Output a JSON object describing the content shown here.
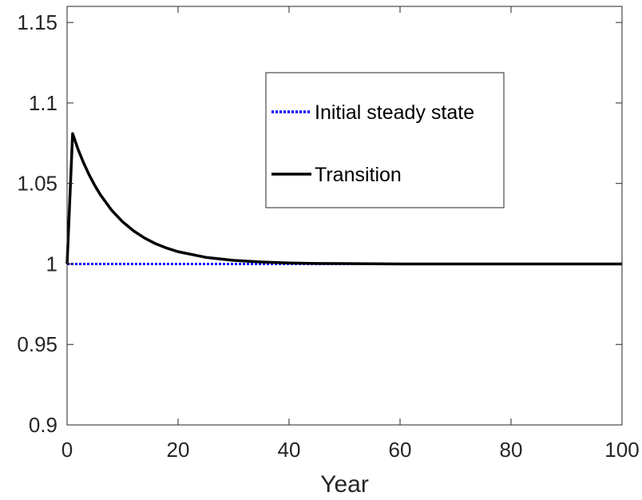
{
  "chart_data": {
    "type": "line",
    "title": "",
    "xlabel": "Year",
    "ylabel": "",
    "xlim": [
      0,
      100
    ],
    "ylim": [
      0.9,
      1.16
    ],
    "xticks": [
      0,
      20,
      40,
      60,
      80,
      100
    ],
    "xtick_labels": [
      "0",
      "20",
      "40",
      "60",
      "80",
      "100"
    ],
    "yticks": [
      0.9,
      0.95,
      1.0,
      1.05,
      1.1,
      1.15
    ],
    "ytick_labels": [
      "0.9",
      "0.95",
      "1",
      "1.05",
      "1.1",
      "1.15"
    ],
    "grid": false,
    "legend_position": "upper-right",
    "series": [
      {
        "name": "Initial steady state",
        "style": "dotted",
        "color": "#0000ff",
        "x": [
          0,
          100
        ],
        "y": [
          1.0,
          1.0
        ]
      },
      {
        "name": "Transition",
        "style": "solid",
        "color": "#000000",
        "x": [
          0,
          1,
          2,
          3,
          4,
          5,
          6,
          8,
          10,
          12,
          14,
          16,
          18,
          20,
          25,
          30,
          35,
          40,
          45,
          50,
          60,
          70,
          80,
          90,
          100
        ],
        "y": [
          1.0,
          1.081,
          1.071,
          1.0626,
          1.0552,
          1.0487,
          1.043,
          1.0335,
          1.0262,
          1.0205,
          1.016,
          1.0125,
          1.0098,
          1.0076,
          1.0041,
          1.0022,
          1.0012,
          1.0006,
          1.0003,
          1.0002,
          1.0,
          1.0,
          1.0,
          1.0,
          1.0
        ]
      }
    ]
  }
}
